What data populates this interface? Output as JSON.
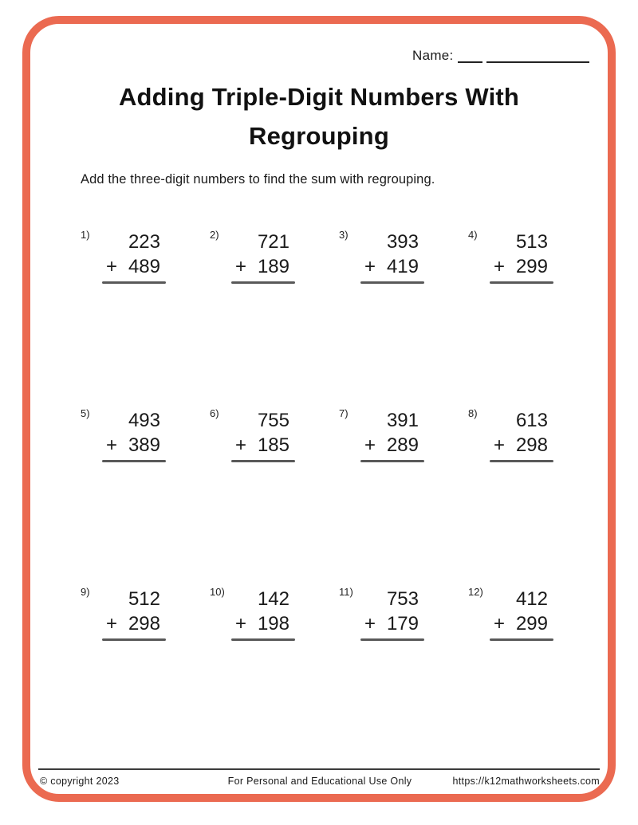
{
  "page": {
    "background": "#ffffff",
    "accent_color": "#EB6A51",
    "answer_line_color": "#595959"
  },
  "header": {
    "name_label": "Name:",
    "title_line1": "Adding Triple-Digit Numbers With",
    "title_line2": "Regrouping",
    "instruction": "Add the three-digit numbers to find the sum with regrouping."
  },
  "problems": [
    {
      "num": "1)",
      "addend_top": "223",
      "operator": "+",
      "addend_bottom": "489"
    },
    {
      "num": "2)",
      "addend_top": "721",
      "operator": "+",
      "addend_bottom": "189"
    },
    {
      "num": "3)",
      "addend_top": "393",
      "operator": "+",
      "addend_bottom": "419"
    },
    {
      "num": "4)",
      "addend_top": "513",
      "operator": "+",
      "addend_bottom": "299"
    },
    {
      "num": "5)",
      "addend_top": "493",
      "operator": "+",
      "addend_bottom": "389"
    },
    {
      "num": "6)",
      "addend_top": "755",
      "operator": "+",
      "addend_bottom": "185"
    },
    {
      "num": "7)",
      "addend_top": "391",
      "operator": "+",
      "addend_bottom": "289"
    },
    {
      "num": "8)",
      "addend_top": "613",
      "operator": "+",
      "addend_bottom": "298"
    },
    {
      "num": "9)",
      "addend_top": "512",
      "operator": "+",
      "addend_bottom": "298"
    },
    {
      "num": "10)",
      "addend_top": "142",
      "operator": "+",
      "addend_bottom": "198"
    },
    {
      "num": "11)",
      "addend_top": "753",
      "operator": "+",
      "addend_bottom": "179"
    },
    {
      "num": "12)",
      "addend_top": "412",
      "operator": "+",
      "addend_bottom": "299"
    }
  ],
  "footer": {
    "copyright": "© copyright 2023",
    "usage": "For Personal and Educational Use Only",
    "url": "https://k12mathworksheets.com"
  }
}
